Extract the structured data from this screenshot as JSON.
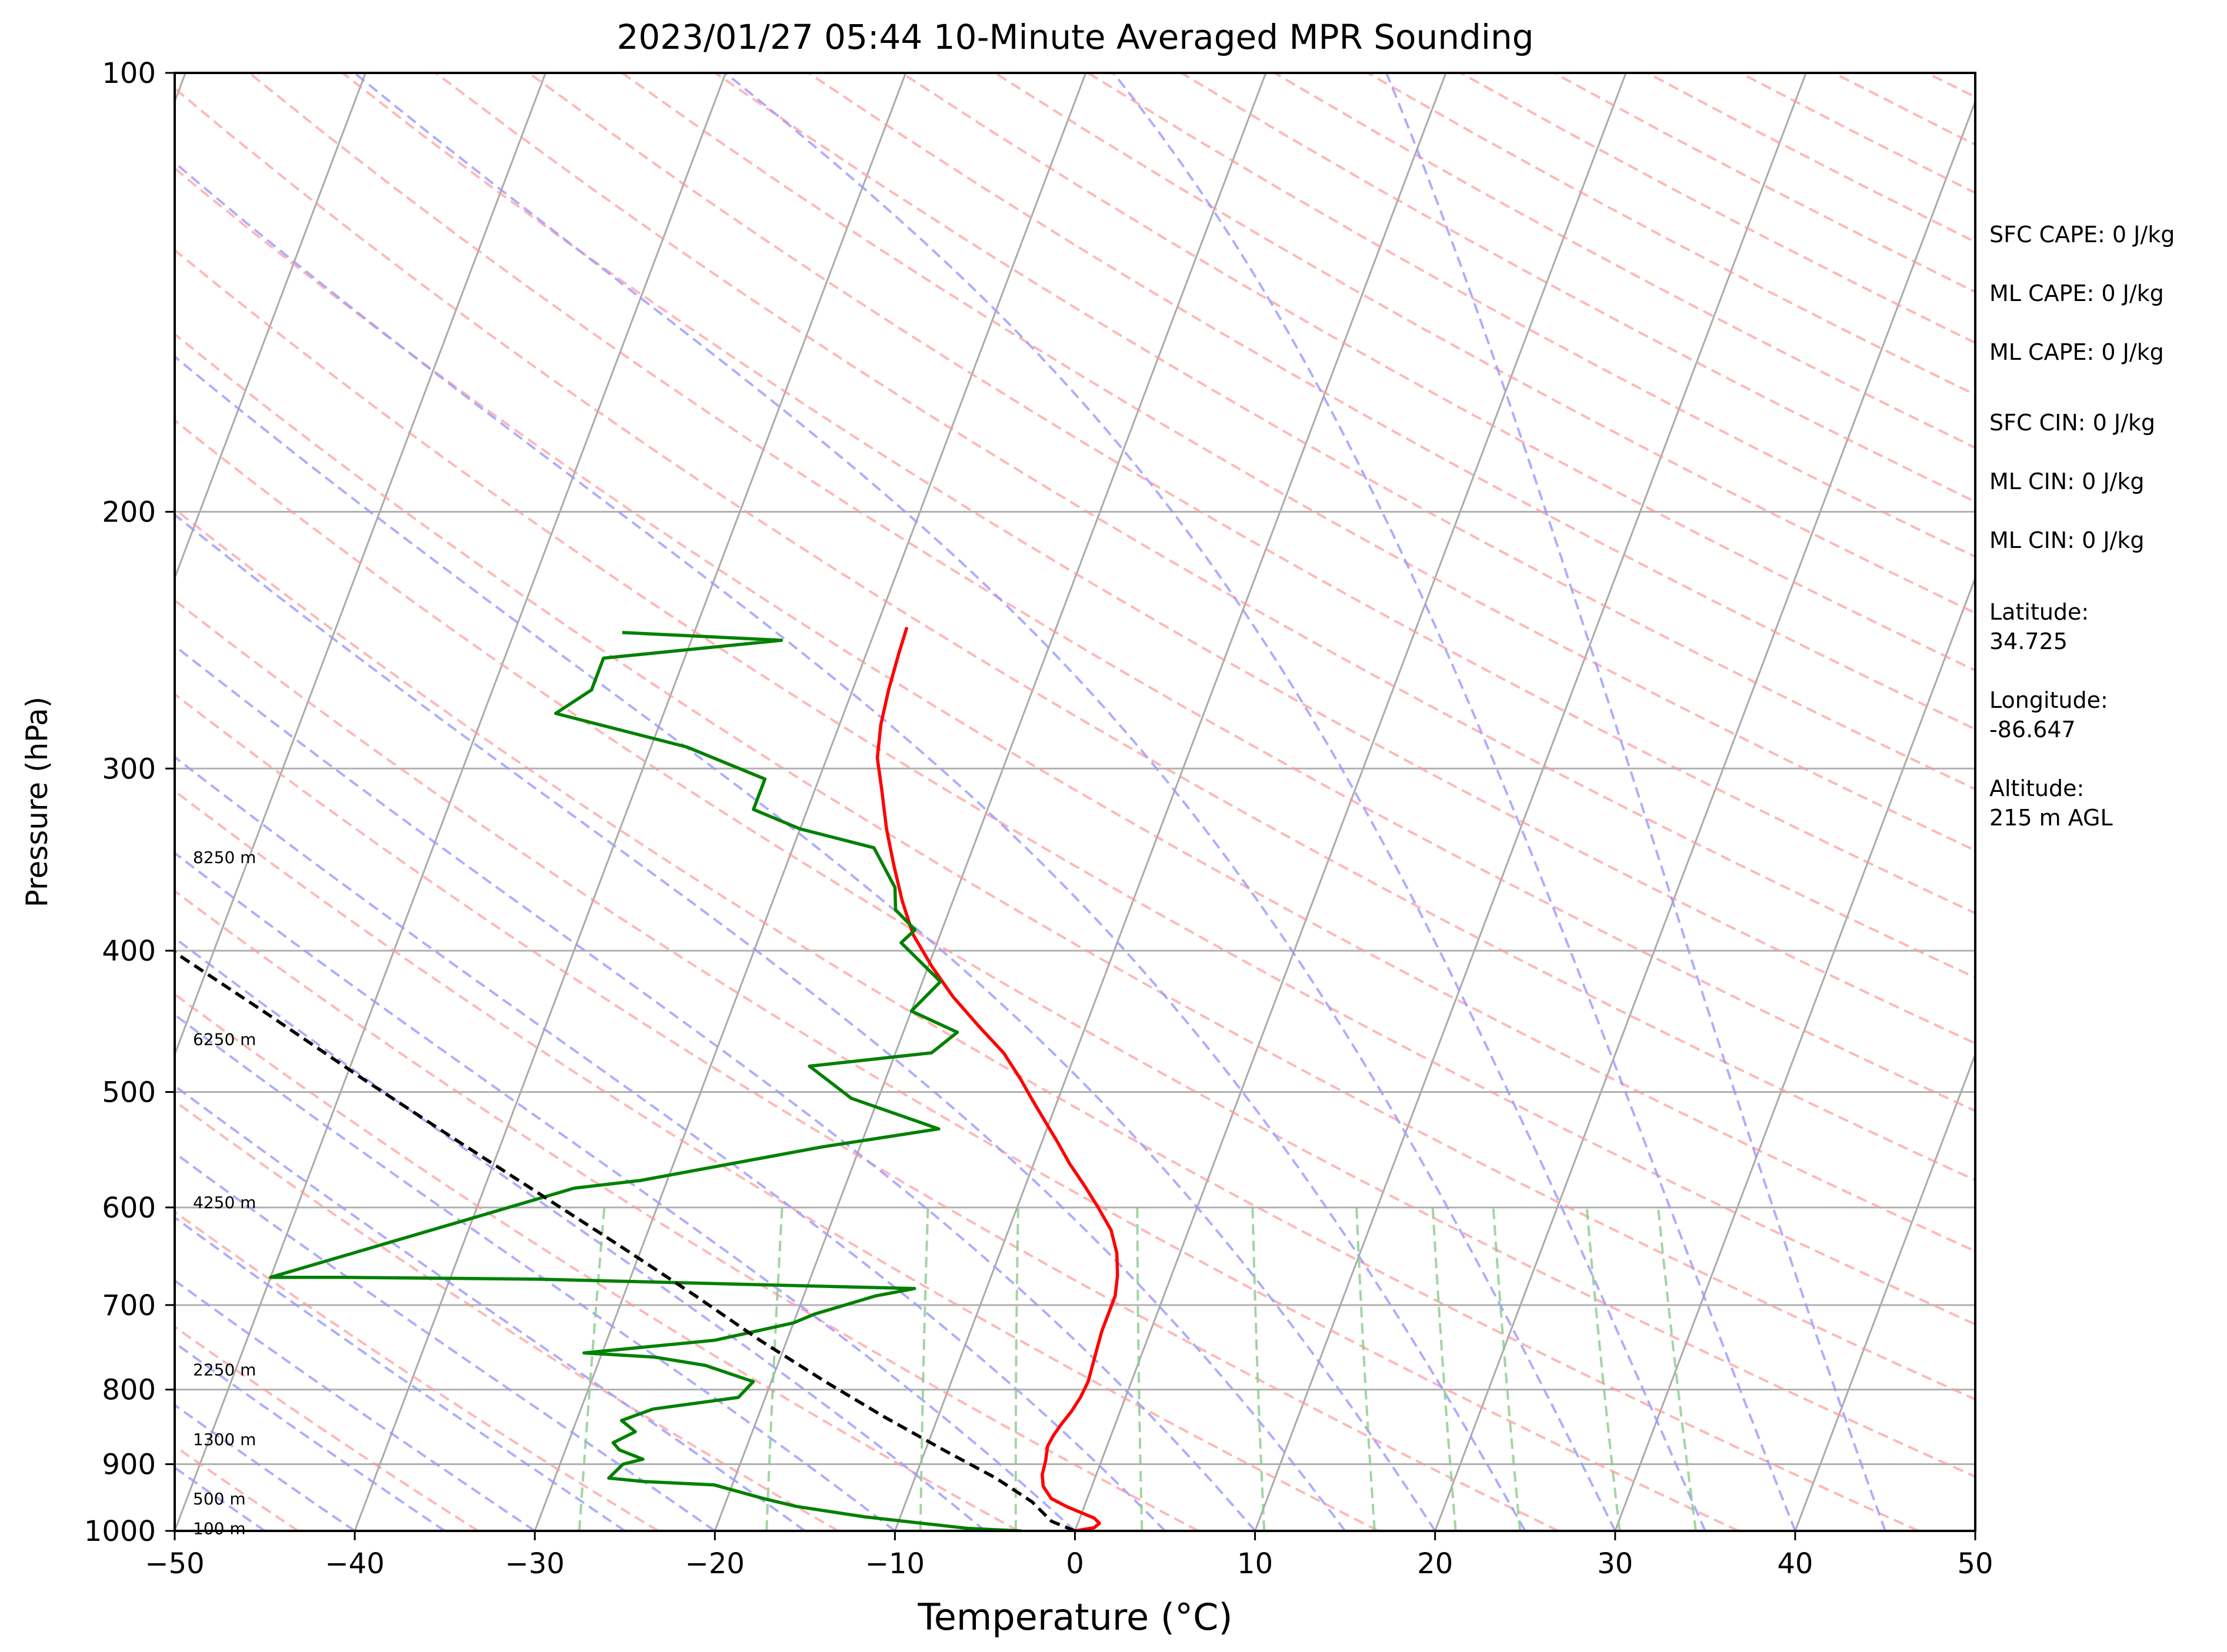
{
  "chart_data": {
    "type": "line",
    "title": "2023/01/27 05:44 10-Minute Averaged MPR Sounding",
    "xlabel": "Temperature (°C)",
    "ylabel": "Pressure (hPa)",
    "xlim": [
      -50,
      50
    ],
    "ylim": [
      1000,
      100
    ],
    "y_scale": "log",
    "skew": "skew-T log-P diagram",
    "x_ticks": [
      "−50",
      "−40",
      "−30",
      "−20",
      "−10",
      "0",
      "10",
      "20",
      "30",
      "40",
      "50"
    ],
    "y_ticks": [
      {
        "p": 100,
        "label": "100"
      },
      {
        "p": 200,
        "label": "200"
      },
      {
        "p": 300,
        "label": "300"
      },
      {
        "p": 400,
        "label": "400"
      },
      {
        "p": 500,
        "label": "500"
      },
      {
        "p": 600,
        "label": "600"
      },
      {
        "p": 700,
        "label": "700"
      },
      {
        "p": 800,
        "label": "800"
      },
      {
        "p": 900,
        "label": "900"
      },
      {
        "p": 1000,
        "label": "1000"
      }
    ],
    "height_labels": [
      {
        "p": 996,
        "label": "100 m"
      },
      {
        "p": 950,
        "label": "500 m"
      },
      {
        "p": 865,
        "label": "1300 m"
      },
      {
        "p": 775,
        "label": "2250 m"
      },
      {
        "p": 595,
        "label": "4250 m"
      },
      {
        "p": 460,
        "label": "6250 m"
      },
      {
        "p": 345,
        "label": "8250 m"
      }
    ],
    "series": [
      {
        "role": "temperature",
        "color": "#ff0000",
        "points": [
          [
            0,
            1000
          ],
          [
            1,
            995
          ],
          [
            1.2,
            988
          ],
          [
            0.8,
            980
          ],
          [
            0,
            972
          ],
          [
            -1,
            962
          ],
          [
            -2,
            950
          ],
          [
            -2.7,
            932
          ],
          [
            -3,
            915
          ],
          [
            -3.1,
            895
          ],
          [
            -3.3,
            875
          ],
          [
            -3.2,
            860
          ],
          [
            -3,
            845
          ],
          [
            -2.7,
            828
          ],
          [
            -2.5,
            810
          ],
          [
            -2.4,
            790
          ],
          [
            -2.5,
            770
          ],
          [
            -2.6,
            750
          ],
          [
            -2.7,
            730
          ],
          [
            -2.7,
            710
          ],
          [
            -2.7,
            690
          ],
          [
            -3,
            668
          ],
          [
            -3.5,
            645
          ],
          [
            -4.3,
            622
          ],
          [
            -5.5,
            600
          ],
          [
            -6.7,
            580
          ],
          [
            -8,
            560
          ],
          [
            -9.2,
            540
          ],
          [
            -10.5,
            520
          ],
          [
            -11.5,
            505
          ],
          [
            -12.5,
            490
          ],
          [
            -14,
            470
          ],
          [
            -16,
            450
          ],
          [
            -18,
            430
          ],
          [
            -19.8,
            410
          ],
          [
            -21.5,
            390
          ],
          [
            -22.8,
            370
          ],
          [
            -24,
            350
          ],
          [
            -25.2,
            330
          ],
          [
            -26.3,
            310
          ],
          [
            -27.2,
            295
          ],
          [
            -27.7,
            280
          ],
          [
            -28,
            265
          ],
          [
            -28.2,
            250
          ],
          [
            -28.3,
            240
          ]
        ]
      },
      {
        "role": "dewpoint",
        "color": "#008000",
        "points": [
          [
            -3,
            1000
          ],
          [
            -6,
            996
          ],
          [
            -8,
            990
          ],
          [
            -10,
            984
          ],
          [
            -12,
            978
          ],
          [
            -14,
            970
          ],
          [
            -16,
            962
          ],
          [
            -18,
            950
          ],
          [
            -21,
            930
          ],
          [
            -25,
            925
          ],
          [
            -27,
            920
          ],
          [
            -26.5,
            900
          ],
          [
            -25.5,
            893
          ],
          [
            -27,
            880
          ],
          [
            -27.5,
            870
          ],
          [
            -26.5,
            855
          ],
          [
            -27.5,
            840
          ],
          [
            -26,
            825
          ],
          [
            -21.5,
            810
          ],
          [
            -21,
            790
          ],
          [
            -24,
            770
          ],
          [
            -27,
            760
          ],
          [
            -31,
            755
          ],
          [
            -24,
            740
          ],
          [
            -20,
            720
          ],
          [
            -19,
            710
          ],
          [
            -16,
            690
          ],
          [
            -14,
            682
          ],
          [
            -35,
            672
          ],
          [
            -46,
            670
          ],
          [
            -50,
            670
          ],
          [
            -35,
            582
          ],
          [
            -31.5,
            575
          ],
          [
            -22,
            545
          ],
          [
            -16,
            530
          ],
          [
            -21.5,
            505
          ],
          [
            -24.5,
            480
          ],
          [
            -18,
            470
          ],
          [
            -17,
            455
          ],
          [
            -20,
            440
          ],
          [
            -19,
            420
          ],
          [
            -22,
            395
          ],
          [
            -21.5,
            387
          ],
          [
            -23,
            375
          ],
          [
            -23.5,
            362
          ],
          [
            -25.5,
            340
          ],
          [
            -30,
            330
          ],
          [
            -33,
            320
          ],
          [
            -33,
            305
          ],
          [
            -38,
            290
          ],
          [
            -46,
            275
          ],
          [
            -44.5,
            265
          ],
          [
            -44.5,
            252
          ],
          [
            -35,
            245
          ],
          [
            -44,
            242
          ]
        ]
      },
      {
        "role": "parcel",
        "color": "#000000",
        "style": "dashed",
        "points": [
          [
            0,
            1000
          ],
          [
            -1.5,
            985
          ],
          [
            -3,
            955
          ],
          [
            -5.5,
            920
          ],
          [
            -9,
            880
          ],
          [
            -13,
            835
          ],
          [
            -17,
            790
          ],
          [
            -21.5,
            740
          ],
          [
            -26,
            690
          ],
          [
            -31,
            640
          ],
          [
            -36.5,
            590
          ],
          [
            -42.5,
            540
          ],
          [
            -49,
            490
          ],
          [
            -56,
            440
          ],
          [
            -64,
            390
          ],
          [
            -71,
            350
          ],
          [
            -80,
            300
          ]
        ]
      }
    ],
    "annotations": [
      "SFC CAPE: 0 J/kg",
      "ML CAPE: 0 J/kg",
      "ML CAPE: 0 J/kg",
      "SFC CIN: 0 J/kg",
      "ML CIN: 0 J/kg",
      "ML CIN: 0 J/kg",
      "Latitude:",
      "34.725",
      "Longitude:",
      "-86.647",
      "Altitude:",
      "215 m AGL"
    ],
    "colors": {
      "isotherm": "#aaaaaa",
      "dry_adiabat": "#ff9999",
      "moist_adiabat": "#9999ff",
      "mixing_ratio": "#88cc88"
    }
  }
}
